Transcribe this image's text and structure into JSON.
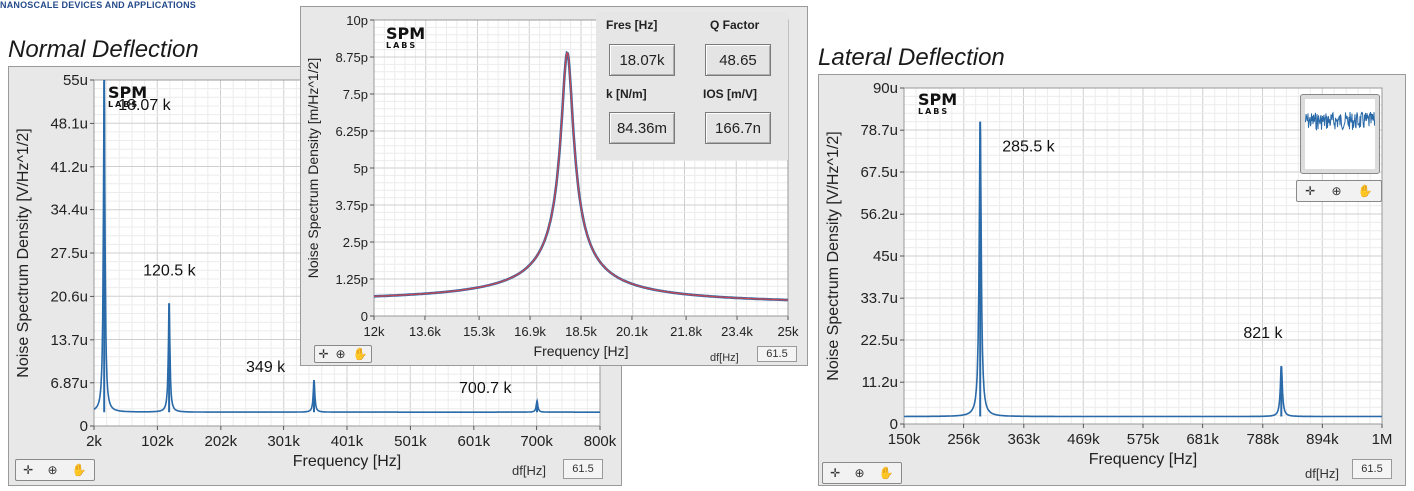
{
  "header": {
    "brand_text": "NANOSCALE DEVICES AND APPLICATIONS"
  },
  "colors": {
    "trace": "#2a6aa8",
    "fit": "#d0444c",
    "grid": "#dcdcdc",
    "panel": "#e8e8e8"
  },
  "toolbar_icons": [
    "cursor-icon",
    "zoom-icon",
    "pan-hand-icon"
  ],
  "chart_data": [
    {
      "id": "normal",
      "type": "line",
      "title": "Normal Deflection",
      "logo": "SPM",
      "logo_sub": "LABS",
      "xlabel": "Frequency [Hz]",
      "ylabel": "Noise Spectrum Density [V/Hz^1/2]",
      "xlim": [
        2000,
        800000
      ],
      "ylim": [
        0,
        55
      ],
      "x_unit": "Hz",
      "y_unit": "uV/Hz^1/2",
      "x_ticks": [
        2000,
        102000,
        202000,
        301000,
        401000,
        501000,
        601000,
        700000,
        800000
      ],
      "x_tick_labels": [
        "2k",
        "102k",
        "202k",
        "301k",
        "401k",
        "501k",
        "601k",
        "700k",
        "800k"
      ],
      "y_ticks": [
        0,
        6.87,
        13.7,
        20.6,
        27.5,
        34.4,
        41.2,
        48.1,
        55
      ],
      "y_tick_labels": [
        "0",
        "6.87u",
        "13.7u",
        "20.6u",
        "27.5u",
        "34.4u",
        "41.2u",
        "48.1u",
        "55u"
      ],
      "baseline": 2.2,
      "peaks": [
        {
          "x": 18070,
          "y": 55,
          "width": 1500,
          "label": "18.07 k"
        },
        {
          "x": 120500,
          "y": 19.5,
          "width": 1500,
          "label": "120.5 k"
        },
        {
          "x": 349000,
          "y": 7.3,
          "width": 1500,
          "label": "349 k"
        },
        {
          "x": 700700,
          "y": 4.0,
          "width": 1500,
          "label": "700.7 k"
        }
      ],
      "df_label": "df[Hz]",
      "df_value": "61.5",
      "grid": true
    },
    {
      "id": "zoom",
      "type": "line",
      "title": "",
      "logo": "SPM",
      "logo_sub": "LABS",
      "xlabel": "Frequency [Hz]",
      "ylabel": "Noise Spectrum Density [m/Hz^1/2]",
      "xlim": [
        12000,
        25000
      ],
      "ylim": [
        0,
        10
      ],
      "x_unit": "Hz",
      "y_unit": "pm/Hz^1/2",
      "x_ticks": [
        12000,
        13600,
        15300,
        16900,
        18500,
        20100,
        21800,
        23400,
        25000
      ],
      "x_tick_labels": [
        "12k",
        "13.6k",
        "15.3k",
        "16.9k",
        "18.5k",
        "20.1k",
        "21.8k",
        "23.4k",
        "25k"
      ],
      "y_ticks": [
        0,
        1.25,
        2.5,
        3.75,
        5,
        6.25,
        7.5,
        8.75,
        10
      ],
      "y_tick_labels": [
        "0",
        "1.25p",
        "2.5p",
        "3.75p",
        "5p",
        "6.25p",
        "7.5p",
        "8.75p",
        "10p"
      ],
      "series": [
        {
          "kind": "data",
          "f0": 18070,
          "Q": 48.65,
          "peak": 8.9,
          "offset": 0.35
        },
        {
          "kind": "fit",
          "f0": 18070,
          "Q": 48.65,
          "peak": 8.9,
          "offset": 0.35
        }
      ],
      "readouts": [
        {
          "label": "Fres [Hz]",
          "value": "18.07k"
        },
        {
          "label": "Q Factor",
          "value": "48.65"
        },
        {
          "label": "k [N/m]",
          "value": "84.36m"
        },
        {
          "label": "IOS [m/V]",
          "value": "166.7n"
        }
      ],
      "df_label": "df[Hz]",
      "df_value": "61.5",
      "grid": true
    },
    {
      "id": "lateral",
      "type": "line",
      "title": "Lateral Deflection",
      "logo": "SPM",
      "logo_sub": "LABS",
      "xlabel": "Frequency [Hz]",
      "ylabel": "Noise Spectrum Density [V/Hz^1/2]",
      "xlim": [
        150000,
        1000000
      ],
      "ylim": [
        0,
        90
      ],
      "x_unit": "Hz",
      "y_unit": "uV/Hz^1/2",
      "x_ticks": [
        150000,
        256000,
        363000,
        469000,
        575000,
        681000,
        788000,
        894000,
        1000000
      ],
      "x_tick_labels": [
        "150k",
        "256k",
        "363k",
        "469k",
        "575k",
        "681k",
        "788k",
        "894k",
        "1M"
      ],
      "y_ticks": [
        0,
        11.2,
        22.5,
        33.7,
        45,
        56.2,
        67.5,
        78.7,
        90
      ],
      "y_tick_labels": [
        "0",
        "11.2u",
        "22.5u",
        "33.7u",
        "45u",
        "56.2u",
        "67.5u",
        "78.7u",
        "90u"
      ],
      "baseline": 2.0,
      "peaks": [
        {
          "x": 285500,
          "y": 81,
          "width": 2200,
          "label": "285.5 k"
        },
        {
          "x": 821000,
          "y": 15.5,
          "width": 2200,
          "label": "821 k"
        }
      ],
      "df_label": "df[Hz]",
      "df_value": "61.5",
      "grid": true
    }
  ]
}
